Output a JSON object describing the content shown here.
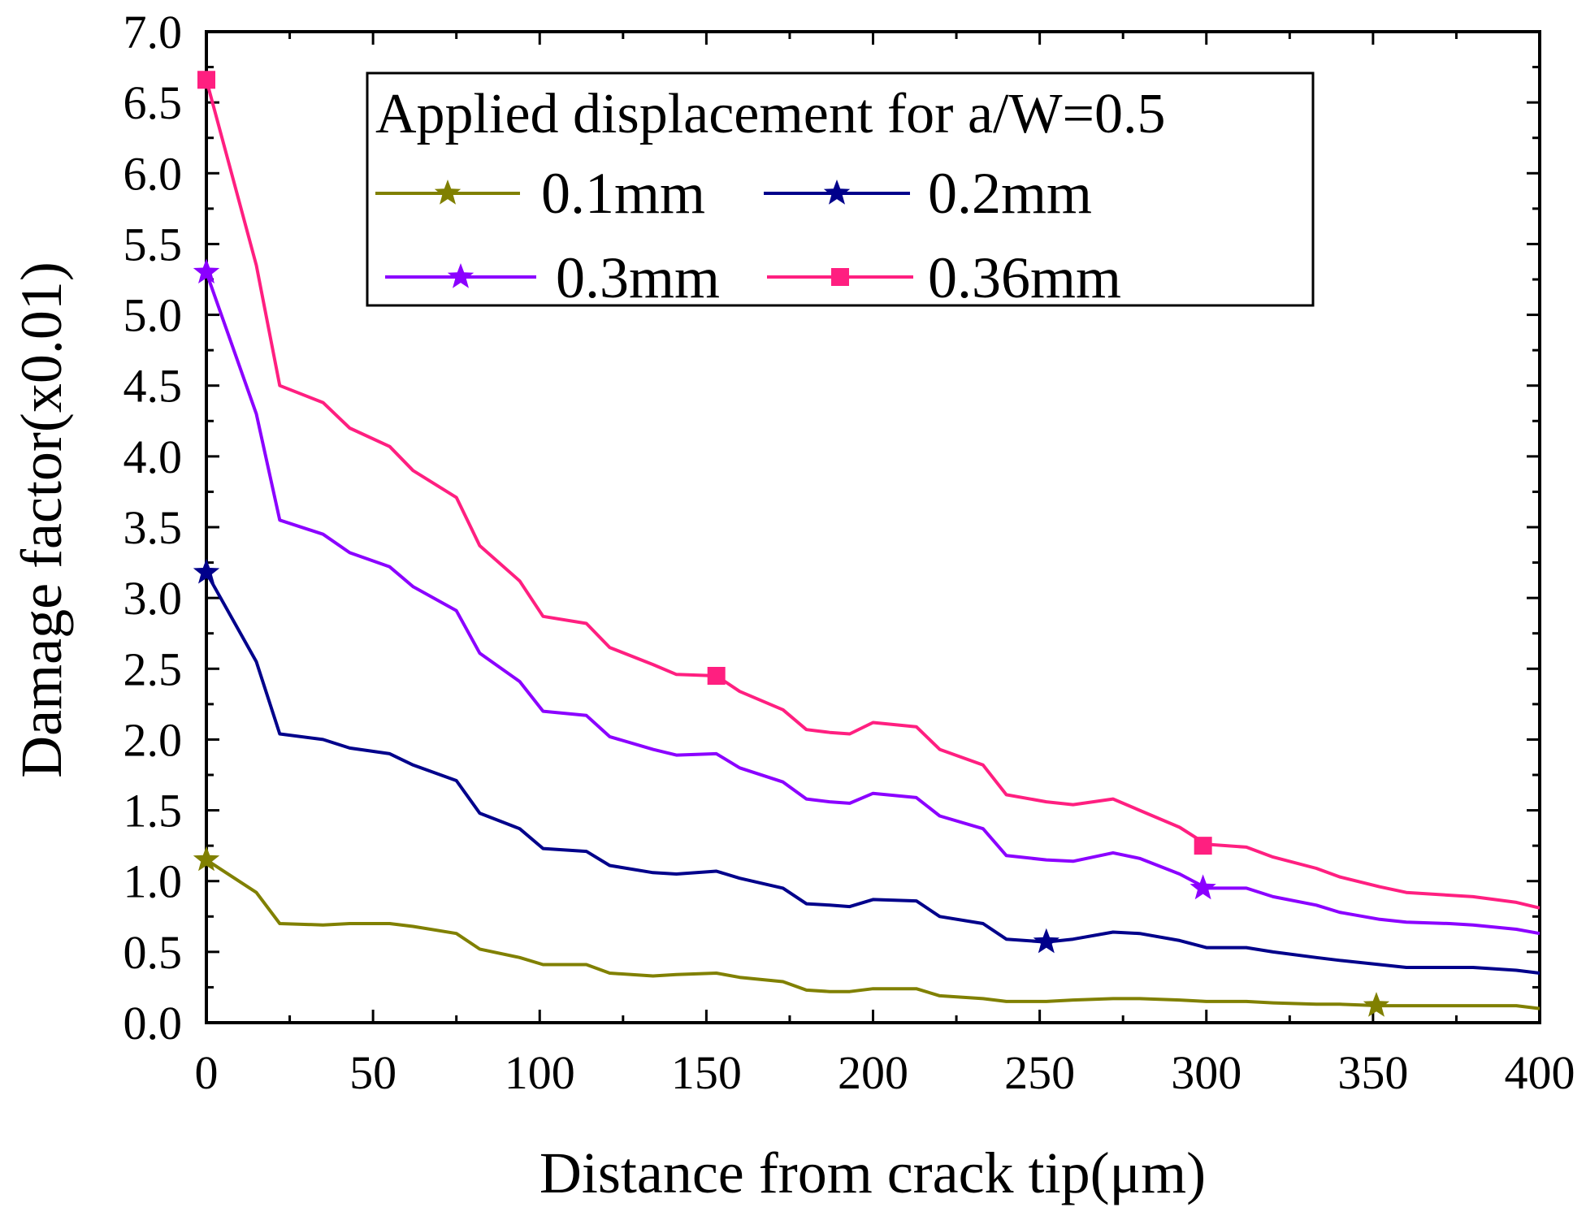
{
  "chart_data": {
    "type": "line",
    "xlabel": "Distance from crack tip(μm)",
    "ylabel": "Damage factor(x0.01)",
    "xlim": [
      0,
      400
    ],
    "ylim": [
      0,
      7
    ],
    "xticks": [
      "0",
      "50",
      "100",
      "150",
      "200",
      "250",
      "300",
      "350",
      "400"
    ],
    "yticks": [
      "0.0",
      "0.5",
      "1.0",
      "1.5",
      "2.0",
      "2.5",
      "3.0",
      "3.5",
      "4.0",
      "4.5",
      "5.0",
      "5.5",
      "6.0",
      "6.5",
      "7.0"
    ],
    "grid": false,
    "legend": {
      "title": "Applied displacement for a/W=0.5",
      "placement": "top-center"
    },
    "series": [
      {
        "name": "0.1mm",
        "color": "#808000",
        "marker": "star",
        "x": [
          0,
          15,
          22,
          35,
          43,
          55,
          62,
          75,
          82,
          94,
          101,
          114,
          121,
          134,
          141,
          153,
          160,
          173,
          180,
          187,
          193,
          200,
          213,
          220,
          233,
          240,
          252,
          260,
          272,
          280,
          292,
          300,
          312,
          320,
          333,
          340,
          352,
          360,
          373,
          380,
          393,
          400
        ],
        "y": [
          1.15,
          0.92,
          0.7,
          0.69,
          0.7,
          0.7,
          0.68,
          0.63,
          0.52,
          0.46,
          0.41,
          0.41,
          0.35,
          0.33,
          0.34,
          0.35,
          0.32,
          0.29,
          0.23,
          0.22,
          0.22,
          0.24,
          0.24,
          0.19,
          0.17,
          0.15,
          0.15,
          0.16,
          0.17,
          0.17,
          0.16,
          0.15,
          0.15,
          0.14,
          0.13,
          0.13,
          0.12,
          0.12,
          0.12,
          0.12,
          0.12,
          0.1
        ],
        "marker_points": [
          {
            "x": 0,
            "y": 1.15
          },
          {
            "x": 351,
            "y": 0.12
          }
        ]
      },
      {
        "name": "0.2mm",
        "color": "#00008b",
        "marker": "star",
        "x": [
          0,
          15,
          22,
          35,
          43,
          55,
          62,
          75,
          82,
          94,
          101,
          114,
          121,
          134,
          141,
          153,
          160,
          173,
          180,
          187,
          193,
          200,
          213,
          220,
          233,
          240,
          252,
          260,
          272,
          280,
          292,
          300,
          312,
          320,
          333,
          340,
          352,
          360,
          373,
          380,
          393,
          400
        ],
        "y": [
          3.18,
          2.55,
          2.04,
          2.0,
          1.94,
          1.9,
          1.82,
          1.71,
          1.48,
          1.37,
          1.23,
          1.21,
          1.11,
          1.06,
          1.05,
          1.07,
          1.02,
          0.95,
          0.84,
          0.83,
          0.82,
          0.87,
          0.86,
          0.75,
          0.7,
          0.59,
          0.57,
          0.59,
          0.64,
          0.63,
          0.58,
          0.53,
          0.53,
          0.5,
          0.46,
          0.44,
          0.41,
          0.39,
          0.39,
          0.39,
          0.37,
          0.35
        ],
        "marker_points": [
          {
            "x": 0,
            "y": 3.18
          },
          {
            "x": 252,
            "y": 0.57
          }
        ]
      },
      {
        "name": "0.3mm",
        "color": "#8b00ff",
        "marker": "star",
        "x": [
          0,
          15,
          22,
          35,
          43,
          55,
          62,
          75,
          82,
          94,
          101,
          114,
          121,
          134,
          141,
          153,
          160,
          173,
          180,
          187,
          193,
          200,
          213,
          220,
          233,
          240,
          252,
          260,
          272,
          280,
          292,
          300,
          312,
          320,
          333,
          340,
          352,
          360,
          373,
          380,
          393,
          400
        ],
        "y": [
          5.3,
          4.3,
          3.55,
          3.45,
          3.32,
          3.22,
          3.08,
          2.91,
          2.61,
          2.41,
          2.2,
          2.17,
          2.02,
          1.93,
          1.89,
          1.9,
          1.8,
          1.7,
          1.58,
          1.56,
          1.55,
          1.62,
          1.59,
          1.46,
          1.37,
          1.18,
          1.15,
          1.14,
          1.2,
          1.16,
          1.05,
          0.95,
          0.95,
          0.89,
          0.83,
          0.78,
          0.73,
          0.71,
          0.7,
          0.69,
          0.66,
          0.63
        ],
        "marker_points": [
          {
            "x": 0,
            "y": 5.3
          },
          {
            "x": 299,
            "y": 0.95
          }
        ]
      },
      {
        "name": "0.36mm",
        "color": "#ff1f80",
        "marker": "square",
        "x": [
          0,
          15,
          22,
          35,
          43,
          55,
          62,
          75,
          82,
          94,
          101,
          114,
          121,
          134,
          141,
          153,
          160,
          173,
          180,
          187,
          193,
          200,
          213,
          220,
          233,
          240,
          252,
          260,
          272,
          280,
          292,
          300,
          312,
          320,
          333,
          340,
          352,
          360,
          373,
          380,
          393,
          400
        ],
        "y": [
          6.66,
          5.35,
          4.5,
          4.38,
          4.2,
          4.07,
          3.9,
          3.71,
          3.37,
          3.12,
          2.87,
          2.82,
          2.65,
          2.53,
          2.46,
          2.45,
          2.34,
          2.21,
          2.07,
          2.05,
          2.04,
          2.12,
          2.09,
          1.93,
          1.82,
          1.61,
          1.56,
          1.54,
          1.58,
          1.5,
          1.38,
          1.26,
          1.24,
          1.17,
          1.09,
          1.03,
          0.96,
          0.92,
          0.9,
          0.89,
          0.85,
          0.81
        ],
        "marker_points": [
          {
            "x": 0,
            "y": 6.66
          },
          {
            "x": 153,
            "y": 2.45
          },
          {
            "x": 299,
            "y": 1.25
          }
        ]
      }
    ]
  }
}
